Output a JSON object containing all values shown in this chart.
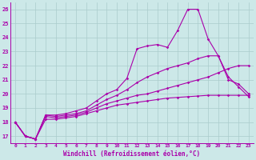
{
  "background_color": "#cce8e8",
  "grid_color": "#aacccc",
  "line_color": "#aa00aa",
  "xlabel": "Windchill (Refroidissement éolien,°C)",
  "xlim": [
    -0.5,
    23.5
  ],
  "ylim": [
    16.5,
    26.5
  ],
  "yticks": [
    17,
    18,
    19,
    20,
    21,
    22,
    23,
    24,
    25,
    26
  ],
  "xticks": [
    0,
    1,
    2,
    3,
    4,
    5,
    6,
    7,
    8,
    9,
    10,
    11,
    12,
    13,
    14,
    15,
    16,
    17,
    18,
    19,
    20,
    21,
    22,
    23
  ],
  "lines": [
    [
      18.0,
      17.0,
      16.8,
      18.5,
      18.5,
      18.6,
      18.8,
      19.0,
      19.5,
      20.0,
      20.3,
      21.1,
      23.2,
      23.4,
      23.5,
      23.3,
      24.5,
      26.0,
      26.0,
      23.9,
      22.7,
      21.0,
      20.7,
      20.0
    ],
    [
      18.0,
      17.0,
      16.8,
      18.5,
      18.4,
      18.5,
      18.6,
      18.8,
      19.2,
      19.6,
      19.9,
      20.3,
      20.8,
      21.2,
      21.5,
      21.8,
      22.0,
      22.2,
      22.5,
      22.7,
      22.7,
      21.2,
      20.5,
      19.8
    ],
    [
      18.0,
      17.0,
      16.8,
      18.4,
      18.3,
      18.4,
      18.5,
      18.7,
      19.0,
      19.3,
      19.5,
      19.7,
      19.9,
      20.0,
      20.2,
      20.4,
      20.6,
      20.8,
      21.0,
      21.2,
      21.5,
      21.8,
      22.0,
      22.0
    ],
    [
      18.0,
      17.0,
      16.8,
      18.2,
      18.2,
      18.3,
      18.4,
      18.6,
      18.8,
      19.0,
      19.2,
      19.3,
      19.4,
      19.5,
      19.6,
      19.7,
      19.75,
      19.8,
      19.85,
      19.9,
      19.9,
      19.9,
      19.9,
      19.9
    ]
  ]
}
